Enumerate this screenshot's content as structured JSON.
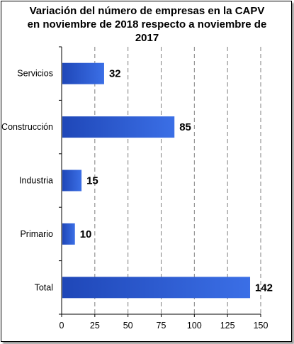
{
  "chart_data": {
    "type": "bar",
    "orientation": "horizontal",
    "title_lines": [
      "Variación del número de empresas en la CAPV",
      "en noviembre de 2018 respecto a noviembre de",
      "2017"
    ],
    "categories": [
      "Servicios",
      "Construcción",
      "Industria",
      "Primario",
      "Total"
    ],
    "values": [
      32,
      85,
      15,
      10,
      142
    ],
    "xlim": [
      0,
      150
    ],
    "xticks": [
      0,
      25,
      50,
      75,
      100,
      125,
      150
    ],
    "grid": "vertical dashed",
    "legend": "none",
    "bar_color": "#3b6fe6",
    "bar_color_dark": "#1f47b8"
  }
}
